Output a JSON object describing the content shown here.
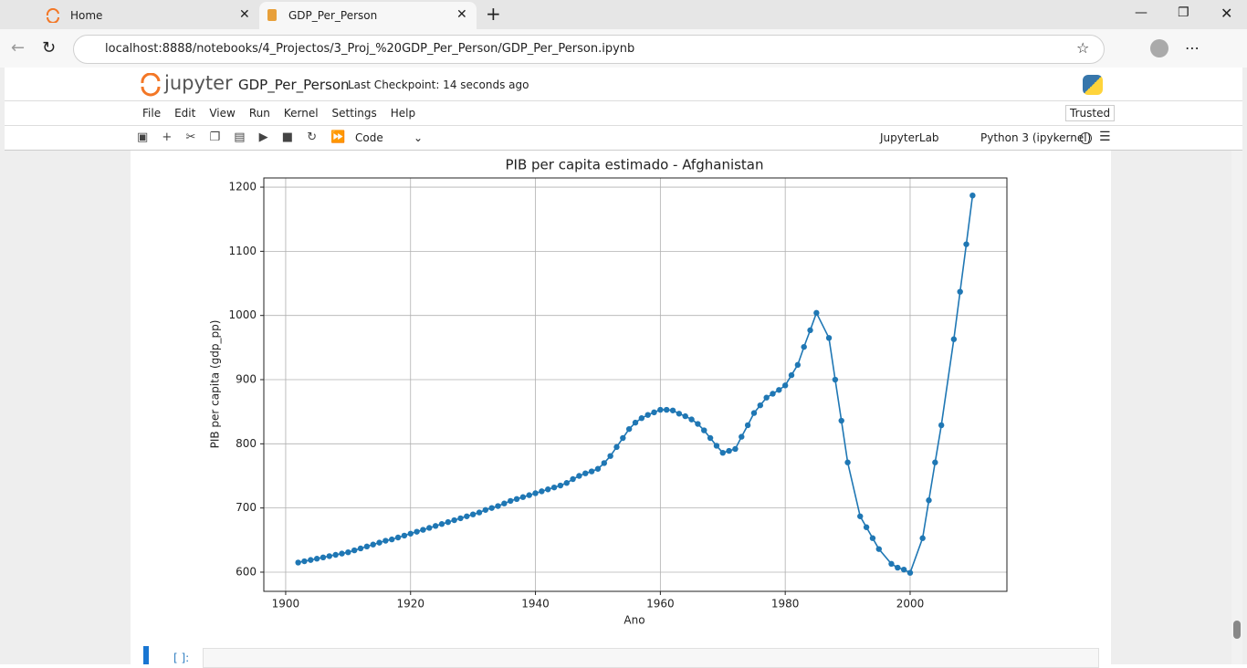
{
  "browser": {
    "tabs": [
      "Home",
      "GDP_Per_Person"
    ],
    "url": "localhost:8888/notebooks/4_Projectos/3_Proj_%20GDP_Per_Person/GDP_Per_Person.ipynb"
  },
  "jupyter": {
    "logo_text": "jupyter",
    "notebook_name": "GDP_Per_Person",
    "checkpoint": "Last Checkpoint: 14 seconds ago",
    "trusted": "Trusted",
    "menu": [
      "File",
      "Edit",
      "View",
      "Run",
      "Kernel",
      "Settings",
      "Help"
    ],
    "cell_type": "Code",
    "jupyterlab": "JupyterLab",
    "kernel": "Python 3 (ipykernel)",
    "next_prompt": "[ ]:"
  },
  "chart_data": {
    "type": "line",
    "title": "PIB per capita estimado - Afghanistan",
    "x_label": "Ano",
    "y_label": "PIB per capita (gdp_pp)",
    "color": "#1f77b4",
    "markers": true,
    "grid": true,
    "x": [
      1902,
      1903,
      1904,
      1905,
      1906,
      1907,
      1908,
      1909,
      1910,
      1911,
      1912,
      1913,
      1914,
      1915,
      1916,
      1917,
      1918,
      1919,
      1920,
      1921,
      1922,
      1923,
      1924,
      1925,
      1926,
      1927,
      1928,
      1929,
      1930,
      1931,
      1932,
      1933,
      1934,
      1935,
      1936,
      1937,
      1938,
      1939,
      1940,
      1941,
      1942,
      1943,
      1944,
      1945,
      1946,
      1947,
      1948,
      1949,
      1950,
      1951,
      1952,
      1953,
      1954,
      1955,
      1956,
      1957,
      1958,
      1959,
      1960,
      1961,
      1962,
      1963,
      1964,
      1965,
      1966,
      1967,
      1968,
      1969,
      1970,
      1971,
      1972,
      1973,
      1974,
      1975,
      1976,
      1977,
      1978,
      1979,
      1980,
      1981,
      1982,
      1983,
      1984,
      1985,
      1987,
      1988,
      1989,
      1990,
      1992,
      1993,
      1994,
      1995,
      1997,
      1998,
      1999,
      2000,
      2002,
      2003,
      2004,
      2005,
      2007,
      2008,
      2009,
      2010
    ],
    "values": [
      615,
      617,
      619,
      621,
      623,
      625,
      627,
      629,
      631,
      634,
      637,
      640,
      643,
      646,
      649,
      651,
      654,
      657,
      660,
      663,
      666,
      669,
      672,
      675,
      678,
      681,
      684,
      687,
      690,
      693,
      697,
      700,
      703,
      707,
      711,
      714,
      717,
      720,
      723,
      726,
      729,
      732,
      735,
      739,
      745,
      750,
      754,
      757,
      761,
      770,
      781,
      795,
      809,
      823,
      833,
      840,
      845,
      849,
      853,
      853,
      852,
      847,
      843,
      838,
      831,
      821,
      809,
      797,
      786,
      789,
      792,
      811,
      829,
      848,
      860,
      872,
      878,
      884,
      891,
      907,
      923,
      951,
      977,
      1004,
      965,
      900,
      836,
      771,
      687,
      670,
      653,
      636,
      613,
      607,
      604,
      599,
      653,
      712,
      771,
      829,
      963,
      1037,
      1111,
      1187
    ],
    "xlim": [
      1896.5,
      2015.5
    ],
    "xticks": [
      1900,
      1920,
      1940,
      1960,
      1980,
      2000
    ],
    "ylim": [
      570.1,
      1214.3
    ],
    "yticks": [
      600,
      700,
      800,
      900,
      1000,
      1100,
      1200
    ]
  }
}
